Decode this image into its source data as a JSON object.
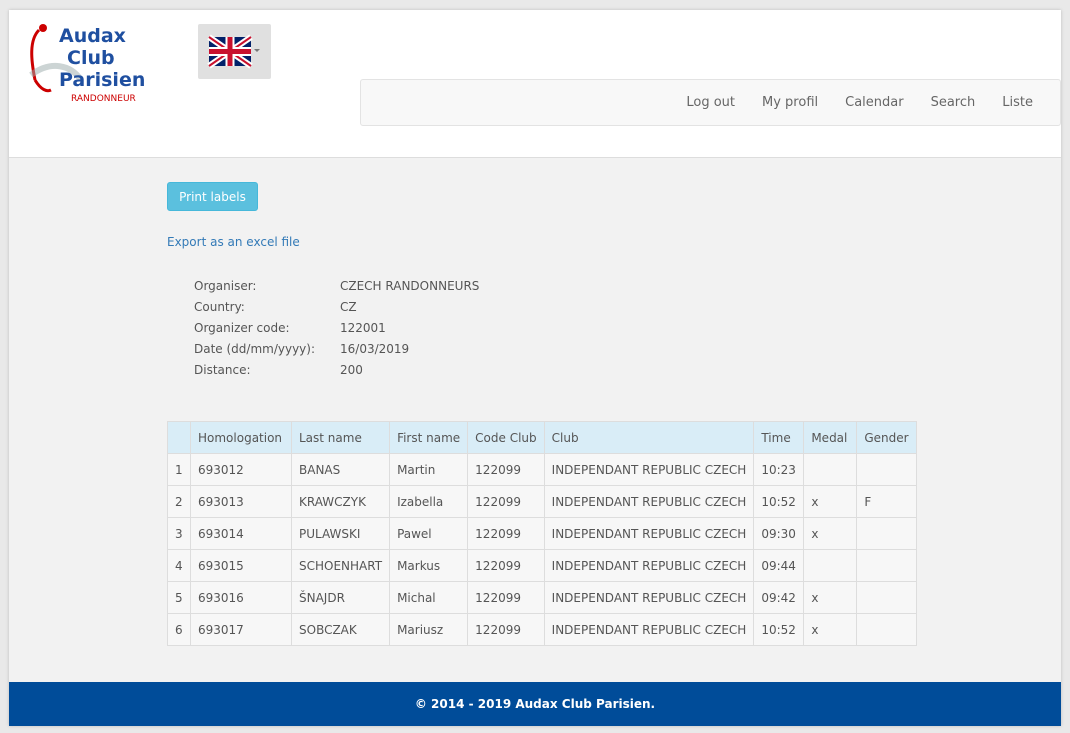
{
  "logo": {
    "line1": "Audax",
    "line2": "Club",
    "line3": "Parisien",
    "tagline": "RANDONNEUR"
  },
  "nav": [
    "Log out",
    "My profil",
    "Calendar",
    "Search",
    "Liste"
  ],
  "actions": {
    "print_button": "Print labels",
    "export_link": "Export as an excel file"
  },
  "info": [
    [
      "Organiser:",
      "CZECH RANDONNEURS"
    ],
    [
      "Country:",
      "CZ"
    ],
    [
      "Organizer code:",
      "122001"
    ],
    [
      "Date (dd/mm/yyyy):",
      "16/03/2019"
    ],
    [
      "Distance:",
      "200"
    ]
  ],
  "table": {
    "header": [
      "Homologation",
      "Last name",
      "First name",
      "Code Club",
      "Club",
      "Time",
      "Medal",
      "Gender"
    ],
    "rows": [
      [
        "1",
        "693012",
        "BANAS",
        "Martin",
        "122099",
        "INDEPENDANT REPUBLIC CZECH",
        "10:23",
        null,
        null
      ],
      [
        "2",
        "693013",
        "KRAWCZYK",
        "Izabella",
        "122099",
        "INDEPENDANT REPUBLIC CZECH",
        "10:52",
        "x",
        "F"
      ],
      [
        "3",
        "693014",
        "PULAWSKI",
        "Pawel",
        "122099",
        "INDEPENDANT REPUBLIC CZECH",
        "09:30",
        "x",
        null
      ],
      [
        "4",
        "693015",
        "SCHOENHART",
        "Markus",
        "122099",
        "INDEPENDANT REPUBLIC CZECH",
        "09:44",
        null,
        null
      ],
      [
        "5",
        "693016",
        "ŠNAJDR",
        "Michal",
        "122099",
        "INDEPENDANT REPUBLIC CZECH",
        "09:42",
        "x",
        null
      ],
      [
        "6",
        "693017",
        "SOBCZAK",
        "Mariusz",
        "122099",
        "INDEPENDANT REPUBLIC CZECH",
        "10:52",
        "x",
        null
      ]
    ]
  },
  "footer": "© 2014 - 2019 Audax Club Parisien."
}
